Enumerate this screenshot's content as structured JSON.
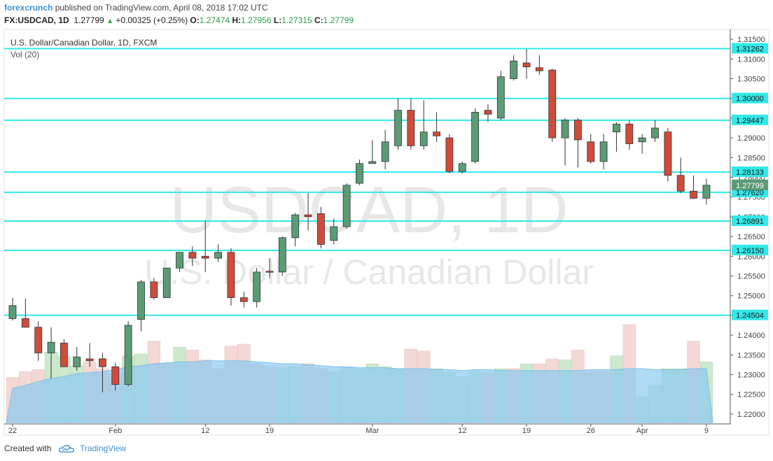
{
  "header": {
    "author": "forexcrunch",
    "published_text": "published on TradingView.com, April 08, 2018 17:02 UTC",
    "symbol": "FX:USDCAD, 1D",
    "last": "1.27799",
    "change": "+0.00325 (+0.25%)",
    "o_label": "O:",
    "o_value": "1.27474",
    "h_label": "H:",
    "h_value": "1.27956",
    "l_label": "L:",
    "l_value": "1.27315",
    "c_label": "C:",
    "c_value": "1.27799"
  },
  "footer": {
    "created_with": "Created with",
    "brand": "TradingView"
  },
  "chart_data": {
    "type": "candlestick",
    "title": "U.S. Dollar/Canadian Dollar, 1D, FXCM",
    "indicator_label": "Vol (20)",
    "watermark_symbol": "USDCAD, 1D",
    "watermark_name": "U.S. Dollar / Canadian Dollar",
    "ylim": [
      1.2175,
      1.3175
    ],
    "y_ticks": [
      "1.31500",
      "1.31000",
      "1.30500",
      "1.30000",
      "1.29500",
      "1.29000",
      "1.28500",
      "1.28000",
      "1.27500",
      "1.27000",
      "1.26500",
      "1.26000",
      "1.25500",
      "1.25000",
      "1.24500",
      "1.24000",
      "1.23500",
      "1.23000",
      "1.22500",
      "1.22000"
    ],
    "x_ticks": [
      {
        "label": "22",
        "index": 0
      },
      {
        "label": "Feb",
        "index": 8
      },
      {
        "label": "12",
        "index": 15
      },
      {
        "label": "19",
        "index": 20
      },
      {
        "label": "Mar",
        "index": 28
      },
      {
        "label": "12",
        "index": 35
      },
      {
        "label": "19",
        "index": 40
      },
      {
        "label": "26",
        "index": 45
      },
      {
        "label": "Apr",
        "index": 49
      },
      {
        "label": "9",
        "index": 54
      }
    ],
    "levels": [
      {
        "value": 1.31262,
        "label": "1.31262"
      },
      {
        "value": 1.3,
        "label": "1.30000"
      },
      {
        "value": 1.29447,
        "label": "1.29447"
      },
      {
        "value": 1.28133,
        "label": "1.28133"
      },
      {
        "value": 1.2762,
        "label": "1.27620"
      },
      {
        "value": 1.26891,
        "label": "1.26891"
      },
      {
        "value": 1.2615,
        "label": "1.26150"
      },
      {
        "value": 1.24504,
        "label": "1.24504"
      }
    ],
    "last_price_label": "1.27799",
    "last_price": 1.27799,
    "colors": {
      "up": "#5b9b75",
      "down": "#d14b3a",
      "level": "#33e8e8",
      "volume_up": "#cde8cc",
      "volume_down": "#f3d8d6",
      "volume_ma": "#8ccaf0"
    },
    "candles": [
      {
        "o": 1.2442,
        "h": 1.2495,
        "l": 1.2437,
        "c": 1.2475
      },
      {
        "o": 1.2442,
        "h": 1.2493,
        "l": 1.2428,
        "c": 1.242
      },
      {
        "o": 1.242,
        "h": 1.2435,
        "l": 1.2335,
        "c": 1.2355
      },
      {
        "o": 1.2355,
        "h": 1.242,
        "l": 1.229,
        "c": 1.2382
      },
      {
        "o": 1.238,
        "h": 1.239,
        "l": 1.232,
        "c": 1.232
      },
      {
        "o": 1.232,
        "h": 1.237,
        "l": 1.231,
        "c": 1.2345
      },
      {
        "o": 1.234,
        "h": 1.238,
        "l": 1.232,
        "c": 1.2335
      },
      {
        "o": 1.234,
        "h": 1.2355,
        "l": 1.2255,
        "c": 1.232
      },
      {
        "o": 1.232,
        "h": 1.233,
        "l": 1.226,
        "c": 1.2275
      },
      {
        "o": 1.2275,
        "h": 1.2435,
        "l": 1.227,
        "c": 1.2425
      },
      {
        "o": 1.244,
        "h": 1.254,
        "l": 1.241,
        "c": 1.2535
      },
      {
        "o": 1.2535,
        "h": 1.2545,
        "l": 1.249,
        "c": 1.2495
      },
      {
        "o": 1.2495,
        "h": 1.257,
        "l": 1.2495,
        "c": 1.257
      },
      {
        "o": 1.257,
        "h": 1.2605,
        "l": 1.256,
        "c": 1.261
      },
      {
        "o": 1.261,
        "h": 1.2625,
        "l": 1.2575,
        "c": 1.2595
      },
      {
        "o": 1.26,
        "h": 1.269,
        "l": 1.256,
        "c": 1.2595
      },
      {
        "o": 1.2595,
        "h": 1.263,
        "l": 1.2585,
        "c": 1.261
      },
      {
        "o": 1.261,
        "h": 1.262,
        "l": 1.2475,
        "c": 1.2495
      },
      {
        "o": 1.2495,
        "h": 1.251,
        "l": 1.247,
        "c": 1.2485
      },
      {
        "o": 1.2485,
        "h": 1.257,
        "l": 1.247,
        "c": 1.256
      },
      {
        "o": 1.2562,
        "h": 1.2595,
        "l": 1.2545,
        "c": 1.256
      },
      {
        "o": 1.256,
        "h": 1.265,
        "l": 1.255,
        "c": 1.2647
      },
      {
        "o": 1.2647,
        "h": 1.271,
        "l": 1.2625,
        "c": 1.2705
      },
      {
        "o": 1.2705,
        "h": 1.276,
        "l": 1.2665,
        "c": 1.27
      },
      {
        "o": 1.2708,
        "h": 1.2725,
        "l": 1.262,
        "c": 1.263
      },
      {
        "o": 1.264,
        "h": 1.2695,
        "l": 1.263,
        "c": 1.2675
      },
      {
        "o": 1.2675,
        "h": 1.2785,
        "l": 1.267,
        "c": 1.278
      },
      {
        "o": 1.2785,
        "h": 1.2845,
        "l": 1.278,
        "c": 1.2835
      },
      {
        "o": 1.2835,
        "h": 1.2895,
        "l": 1.2835,
        "c": 1.284
      },
      {
        "o": 1.284,
        "h": 1.292,
        "l": 1.282,
        "c": 1.289
      },
      {
        "o": 1.288,
        "h": 1.3,
        "l": 1.287,
        "c": 1.297
      },
      {
        "o": 1.297,
        "h": 1.3,
        "l": 1.287,
        "c": 1.288
      },
      {
        "o": 1.288,
        "h": 1.2995,
        "l": 1.287,
        "c": 1.2915
      },
      {
        "o": 1.2915,
        "h": 1.2965,
        "l": 1.289,
        "c": 1.2905
      },
      {
        "o": 1.29,
        "h": 1.291,
        "l": 1.281,
        "c": 1.2815
      },
      {
        "o": 1.2815,
        "h": 1.284,
        "l": 1.281,
        "c": 1.2835
      },
      {
        "o": 1.284,
        "h": 1.2975,
        "l": 1.2835,
        "c": 1.2965
      },
      {
        "o": 1.297,
        "h": 1.2985,
        "l": 1.294,
        "c": 1.296
      },
      {
        "o": 1.295,
        "h": 1.307,
        "l": 1.2945,
        "c": 1.3055
      },
      {
        "o": 1.305,
        "h": 1.311,
        "l": 1.3045,
        "c": 1.3095
      },
      {
        "o": 1.309,
        "h": 1.3125,
        "l": 1.305,
        "c": 1.308
      },
      {
        "o": 1.3078,
        "h": 1.311,
        "l": 1.306,
        "c": 1.307
      },
      {
        "o": 1.3072,
        "h": 1.3075,
        "l": 1.289,
        "c": 1.29
      },
      {
        "o": 1.29,
        "h": 1.295,
        "l": 1.283,
        "c": 1.2945
      },
      {
        "o": 1.2945,
        "h": 1.295,
        "l": 1.2825,
        "c": 1.2895
      },
      {
        "o": 1.289,
        "h": 1.291,
        "l": 1.2835,
        "c": 1.284
      },
      {
        "o": 1.284,
        "h": 1.291,
        "l": 1.282,
        "c": 1.289
      },
      {
        "o": 1.2915,
        "h": 1.294,
        "l": 1.2865,
        "c": 1.2935
      },
      {
        "o": 1.2935,
        "h": 1.2945,
        "l": 1.287,
        "c": 1.2885
      },
      {
        "o": 1.289,
        "h": 1.291,
        "l": 1.286,
        "c": 1.29
      },
      {
        "o": 1.29,
        "h": 1.2945,
        "l": 1.289,
        "c": 1.2925
      },
      {
        "o": 1.2915,
        "h": 1.2925,
        "l": 1.279,
        "c": 1.2805
      },
      {
        "o": 1.2805,
        "h": 1.285,
        "l": 1.276,
        "c": 1.2765
      },
      {
        "o": 1.2765,
        "h": 1.2805,
        "l": 1.2745,
        "c": 1.2747
      },
      {
        "o": 1.2747,
        "h": 1.2796,
        "l": 1.2731,
        "c": 1.278
      }
    ],
    "volume_bars": [
      {
        "h": 0.46,
        "up": false
      },
      {
        "h": 0.52,
        "up": false
      },
      {
        "h": 0.54,
        "up": false
      },
      {
        "h": 0.72,
        "up": true
      },
      {
        "h": 0.68,
        "up": true
      },
      {
        "h": 0.58,
        "up": true
      },
      {
        "h": 0.62,
        "up": false
      },
      {
        "h": 0.55,
        "up": false
      },
      {
        "h": 0.5,
        "up": false
      },
      {
        "h": 0.68,
        "up": true
      },
      {
        "h": 0.7,
        "up": true
      },
      {
        "h": 0.83,
        "up": false
      },
      {
        "h": 0.6,
        "up": false
      },
      {
        "h": 0.77,
        "up": true
      },
      {
        "h": 0.74,
        "up": false
      },
      {
        "h": 0.64,
        "up": false
      },
      {
        "h": 0.55,
        "up": false
      },
      {
        "h": 0.78,
        "up": false
      },
      {
        "h": 0.8,
        "up": false
      },
      {
        "h": 0.6,
        "up": false
      },
      {
        "h": 0.57,
        "up": false
      },
      {
        "h": 0.56,
        "up": true
      },
      {
        "h": 0.57,
        "up": true
      },
      {
        "h": 0.6,
        "up": false
      },
      {
        "h": 0.55,
        "up": false
      },
      {
        "h": 0.52,
        "up": true
      },
      {
        "h": 0.57,
        "up": true
      },
      {
        "h": 0.55,
        "up": true
      },
      {
        "h": 0.6,
        "up": true
      },
      {
        "h": 0.57,
        "up": true
      },
      {
        "h": 0.55,
        "up": true
      },
      {
        "h": 0.75,
        "up": false
      },
      {
        "h": 0.73,
        "up": false
      },
      {
        "h": 0.55,
        "up": true
      },
      {
        "h": 0.51,
        "up": true
      },
      {
        "h": 0.47,
        "up": true
      },
      {
        "h": 0.52,
        "up": true
      },
      {
        "h": 0.51,
        "up": false
      },
      {
        "h": 0.55,
        "up": true
      },
      {
        "h": 0.55,
        "up": false
      },
      {
        "h": 0.6,
        "up": true
      },
      {
        "h": 0.6,
        "up": false
      },
      {
        "h": 0.65,
        "up": false
      },
      {
        "h": 0.64,
        "up": true
      },
      {
        "h": 0.74,
        "up": false
      },
      {
        "h": 0.52,
        "up": false
      },
      {
        "h": 0.52,
        "up": false
      },
      {
        "h": 0.68,
        "up": true
      },
      {
        "h": 1.0,
        "up": false
      },
      {
        "h": 0.26,
        "up": true
      },
      {
        "h": 0.38,
        "up": true
      },
      {
        "h": 0.55,
        "up": true
      },
      {
        "h": 0.55,
        "up": true
      },
      {
        "h": 0.83,
        "up": false
      },
      {
        "h": 0.62,
        "up": true
      }
    ],
    "volume_ma": [
      0.35,
      0.38,
      0.42,
      0.45,
      0.47,
      0.5,
      0.51,
      0.52,
      0.54,
      0.57,
      0.58,
      0.6,
      0.61,
      0.62,
      0.62,
      0.63,
      0.63,
      0.63,
      0.63,
      0.62,
      0.61,
      0.6,
      0.6,
      0.59,
      0.58,
      0.57,
      0.57,
      0.56,
      0.56,
      0.56,
      0.55,
      0.55,
      0.55,
      0.54,
      0.54,
      0.53,
      0.54,
      0.54,
      0.53,
      0.53,
      0.53,
      0.53,
      0.53,
      0.53,
      0.53,
      0.54,
      0.54,
      0.54,
      0.55,
      0.55,
      0.54,
      0.54,
      0.54,
      0.55,
      0.55
    ]
  }
}
